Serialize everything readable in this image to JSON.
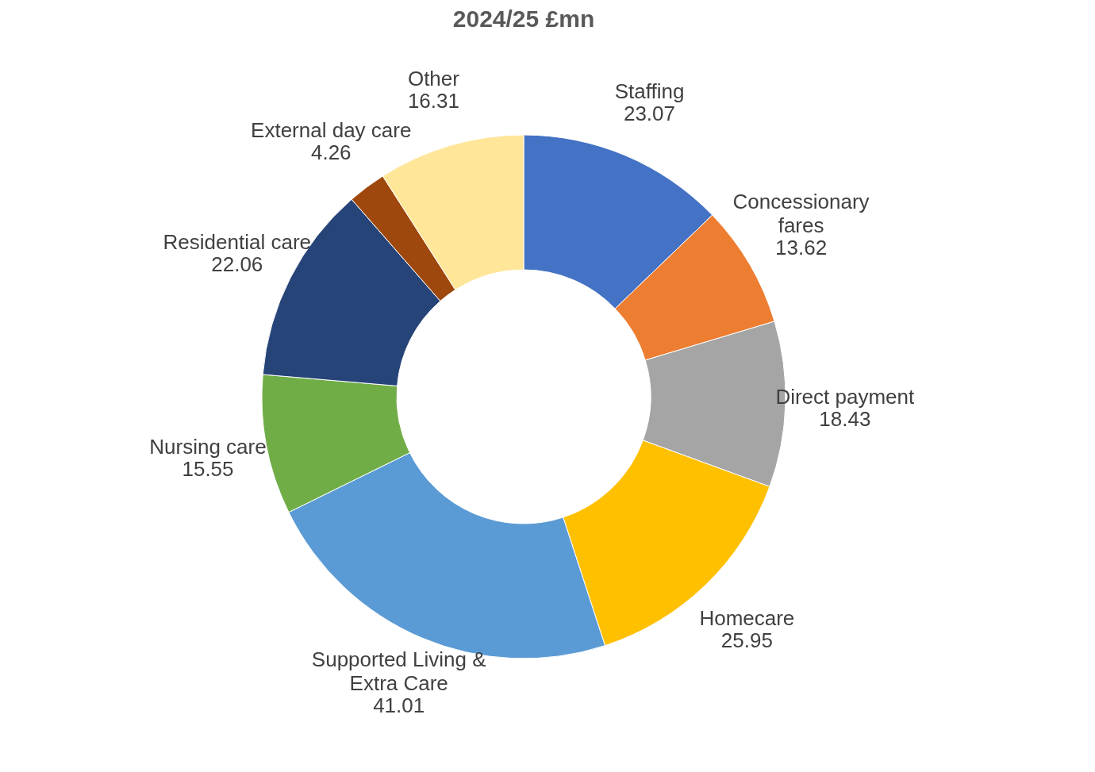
{
  "chart_data": {
    "type": "donut",
    "title": "2024/25 £mn",
    "categories": [
      "Staffing",
      "Concessionary fares",
      "Direct payment",
      "Homecare",
      "Supported Living & Extra Care",
      "Nursing care",
      "Residential care",
      "External day care",
      "Other"
    ],
    "values": [
      23.07,
      13.62,
      18.43,
      25.95,
      41.01,
      15.55,
      22.06,
      4.26,
      16.31
    ],
    "colors": [
      "#4472c4",
      "#ed7d31",
      "#a5a5a5",
      "#ffc000",
      "#5b9bd5",
      "#70ad47",
      "#264478",
      "#9e480e",
      "#ffe699"
    ],
    "data_labels": true,
    "legend": false
  }
}
